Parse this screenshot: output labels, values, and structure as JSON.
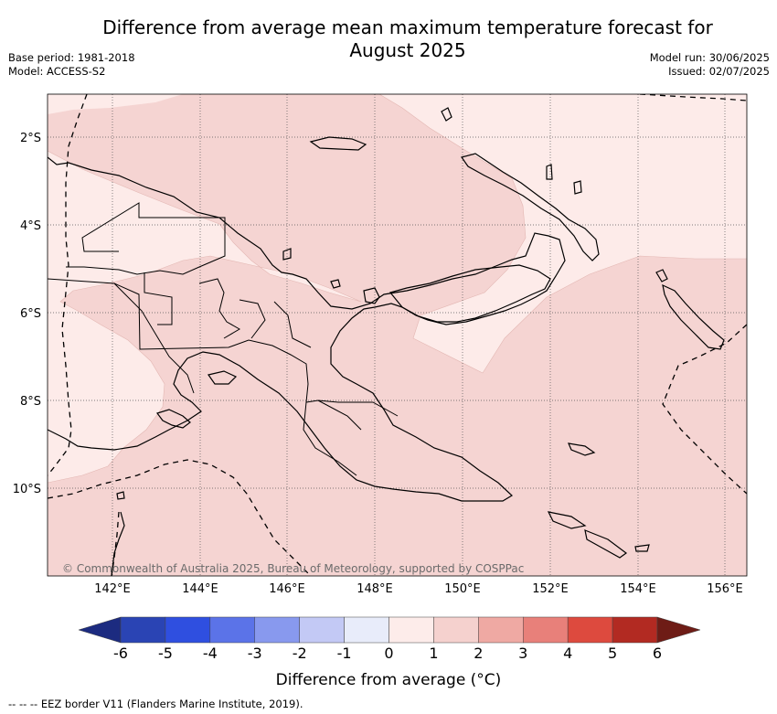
{
  "title_line1": "Difference from average mean maximum temperature forecast for",
  "title_line2": "August 2025",
  "base_period": "Base period: 1981-2018",
  "model": "Model: ACCESS-S2",
  "model_run": "Model run: 30/06/2025",
  "issued": "Issued: 02/07/2025",
  "copyright": "© Commonwealth of Australia 2025, Bureau of Meteorology, supported by COSPPac",
  "x_ticks": [
    "142°E",
    "144°E",
    "146°E",
    "148°E",
    "150°E",
    "152°E",
    "154°E",
    "156°E"
  ],
  "y_ticks": [
    "2°S",
    "4°S",
    "6°S",
    "8°S",
    "10°S"
  ],
  "colorbar": {
    "title": "Difference from average (°C)",
    "labels": [
      "-6",
      "-5",
      "-4",
      "-3",
      "-2",
      "-1",
      "0",
      "1",
      "2",
      "3",
      "4",
      "5",
      "6"
    ],
    "colors": [
      "#2a44b4",
      "#2f4fe0",
      "#5b73e8",
      "#8899ee",
      "#c3c9f5",
      "#e8ecfa",
      "#fdecea",
      "#f5d1ce",
      "#efa9a3",
      "#e8807a",
      "#dd4a3e",
      "#b22a22"
    ],
    "under_color": "#1c2b80",
    "over_color": "#6e1c16"
  },
  "legend_note": "--  --  -- EEZ border V11 (Flanders Marine Institute, 2019)."
}
